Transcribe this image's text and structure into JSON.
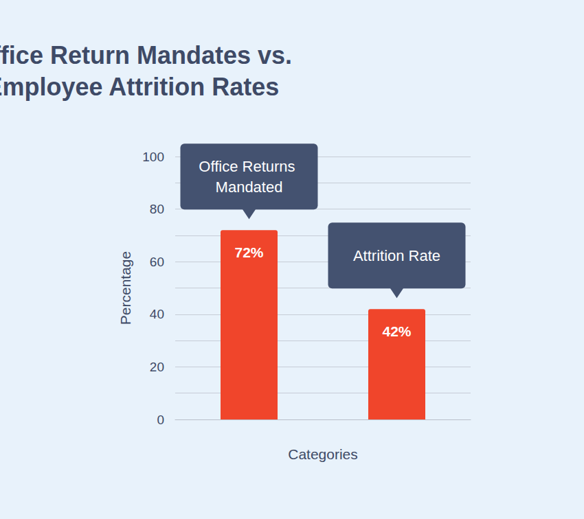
{
  "chart_data": {
    "type": "bar",
    "title": "Office Return Mandates vs.\nEmployee Attrition Rates",
    "x_label": "Categories",
    "y_label": "Percentage",
    "categories": [
      "Office Returns Mandated",
      "Attrition Rate"
    ],
    "values": [
      72,
      42
    ],
    "value_labels": [
      "72%",
      "42%"
    ],
    "color": "#f0452b",
    "ylim": [
      0,
      100
    ],
    "yticks": [
      0,
      20,
      40,
      60,
      80,
      100
    ],
    "grid": true,
    "data_labels": true,
    "tick_labels": "y"
  }
}
